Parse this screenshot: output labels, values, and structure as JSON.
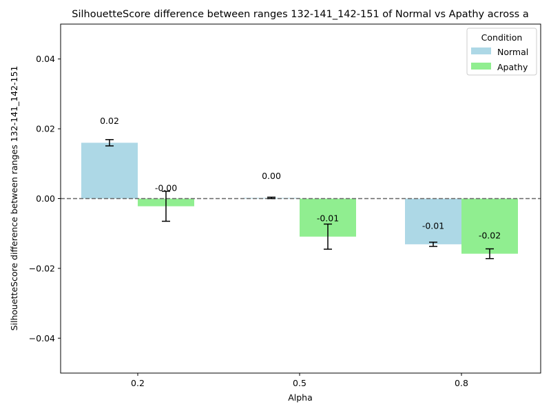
{
  "chart_data": {
    "type": "bar",
    "title": "SilhouetteScore difference between ranges 132-141_142-151 of Normal vs Apathy across a",
    "xlabel": "Alpha",
    "ylabel": "SilhouetteScore difference between ranges 132-141_142-151",
    "categories": [
      "0.2",
      "0.5",
      "0.8"
    ],
    "ylim": [
      -0.05,
      0.05
    ],
    "yticks": [
      -0.04,
      -0.02,
      0.0,
      0.02,
      0.04
    ],
    "ytick_labels": [
      "−0.04",
      "−0.02",
      "0.00",
      "0.02",
      "0.04"
    ],
    "grid": false,
    "zero_line": {
      "y": 0.0,
      "style": "dashed",
      "color": "#666666"
    },
    "legend": {
      "title": "Condition",
      "placement": "top-right"
    },
    "series": [
      {
        "name": "Normal",
        "color": "#add8e6",
        "values": [
          0.016,
          0.0002,
          -0.0131
        ],
        "errors": [
          0.0009,
          0.0002,
          0.0006
        ],
        "labels": [
          "0.02",
          "0.00",
          "-0.01"
        ]
      },
      {
        "name": "Apathy",
        "color": "#90ee90",
        "values": [
          -0.0022,
          -0.0109,
          -0.0158
        ],
        "errors": [
          0.0043,
          0.0036,
          0.0014
        ],
        "labels": [
          "-0.00",
          "-0.01",
          "-0.02"
        ]
      }
    ]
  }
}
